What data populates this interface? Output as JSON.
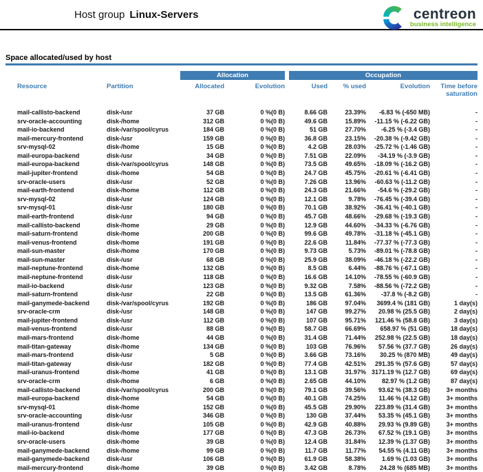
{
  "header": {
    "title_prefix": "Host group",
    "title_name": "Linux-Servers",
    "logo": {
      "brand": "centreon",
      "tagline": "business intelligence"
    }
  },
  "section": {
    "title": "Space allocated/used by host"
  },
  "colors": {
    "band_blue": "#3f7cb3",
    "header_text_blue": "#3f7cb3",
    "rule_blue": "#3f7cb3",
    "logo_navy": "#25323c",
    "logo_green": "#7ab829"
  },
  "table": {
    "group_headers": {
      "allocation": "Allocation",
      "occupation": "Occupation"
    },
    "columns": [
      "Resource",
      "Partition",
      "Allocated",
      "Evolution",
      "Used",
      "% used",
      "Evolution",
      "Time before saturation"
    ],
    "rows": [
      {
        "resource": "mail-callisto-backend",
        "partition": "disk-/usr",
        "allocated": "37 GB",
        "allocated_evolution": "0 %(0 B)",
        "used": "8.66 GB",
        "used_pct": "23.39%",
        "used_evolution": "-6.83 % (-650 MB)",
        "time_before_saturation": "-"
      },
      {
        "resource": "srv-oracle-accounting",
        "partition": "disk-/home",
        "allocated": "312 GB",
        "allocated_evolution": "0 %(0 B)",
        "used": "49.6 GB",
        "used_pct": "15.89%",
        "used_evolution": "-11.15 % (-6.22 GB)",
        "time_before_saturation": "-"
      },
      {
        "resource": "mail-io-backend",
        "partition": "disk-/var/spool/cyrus",
        "allocated": "184 GB",
        "allocated_evolution": "0 %(0 B)",
        "used": "51 GB",
        "used_pct": "27.70%",
        "used_evolution": "-6.25 % (-3.4 GB)",
        "time_before_saturation": "-"
      },
      {
        "resource": "mail-mercury-frontend",
        "partition": "disk-/usr",
        "allocated": "159 GB",
        "allocated_evolution": "0 %(0 B)",
        "used": "36.8 GB",
        "used_pct": "23.15%",
        "used_evolution": "-20.38 % (-9.42 GB)",
        "time_before_saturation": "-"
      },
      {
        "resource": "srv-mysql-02",
        "partition": "disk-/home",
        "allocated": "15 GB",
        "allocated_evolution": "0 %(0 B)",
        "used": "4.2 GB",
        "used_pct": "28.03%",
        "used_evolution": "-25.72 % (-1.46 GB)",
        "time_before_saturation": "-"
      },
      {
        "resource": "mail-europa-backend",
        "partition": "disk-/usr",
        "allocated": "34 GB",
        "allocated_evolution": "0 %(0 B)",
        "used": "7.51 GB",
        "used_pct": "22.09%",
        "used_evolution": "-34.19 % (-3.9 GB)",
        "time_before_saturation": "-"
      },
      {
        "resource": "mail-europa-backend",
        "partition": "disk-/var/spool/cyrus",
        "allocated": "148 GB",
        "allocated_evolution": "0 %(0 B)",
        "used": "73.5 GB",
        "used_pct": "49.65%",
        "used_evolution": "-18.09 % (-16.2 GB)",
        "time_before_saturation": "-"
      },
      {
        "resource": "mail-jupiter-frontend",
        "partition": "disk-/home",
        "allocated": "54 GB",
        "allocated_evolution": "0 %(0 B)",
        "used": "24.7 GB",
        "used_pct": "45.75%",
        "used_evolution": "-20.61 % (-6.41 GB)",
        "time_before_saturation": "-"
      },
      {
        "resource": "srv-oracle-users",
        "partition": "disk-/usr",
        "allocated": "52 GB",
        "allocated_evolution": "0 %(0 B)",
        "used": "7.26 GB",
        "used_pct": "13.96%",
        "used_evolution": "-60.63 % (-11.2 GB)",
        "time_before_saturation": "-"
      },
      {
        "resource": "mail-earth-frontend",
        "partition": "disk-/home",
        "allocated": "112 GB",
        "allocated_evolution": "0 %(0 B)",
        "used": "24.3 GB",
        "used_pct": "21.66%",
        "used_evolution": "-54.6 % (-29.2 GB)",
        "time_before_saturation": "-"
      },
      {
        "resource": "srv-mysql-02",
        "partition": "disk-/usr",
        "allocated": "124 GB",
        "allocated_evolution": "0 %(0 B)",
        "used": "12.1 GB",
        "used_pct": "9.78%",
        "used_evolution": "-76.45 % (-39.4 GB)",
        "time_before_saturation": "-"
      },
      {
        "resource": "srv-mysql-01",
        "partition": "disk-/usr",
        "allocated": "180 GB",
        "allocated_evolution": "0 %(0 B)",
        "used": "70.1 GB",
        "used_pct": "38.92%",
        "used_evolution": "-36.41 % (-40.1 GB)",
        "time_before_saturation": "-"
      },
      {
        "resource": "mail-earth-frontend",
        "partition": "disk-/usr",
        "allocated": "94 GB",
        "allocated_evolution": "0 %(0 B)",
        "used": "45.7 GB",
        "used_pct": "48.66%",
        "used_evolution": "-29.68 % (-19.3 GB)",
        "time_before_saturation": "-"
      },
      {
        "resource": "mail-callisto-backend",
        "partition": "disk-/home",
        "allocated": "29 GB",
        "allocated_evolution": "0 %(0 B)",
        "used": "12.9 GB",
        "used_pct": "44.60%",
        "used_evolution": "-34.33 % (-6.76 GB)",
        "time_before_saturation": "-"
      },
      {
        "resource": "mail-saturn-frontend",
        "partition": "disk-/home",
        "allocated": "200 GB",
        "allocated_evolution": "0 %(0 B)",
        "used": "99.6 GB",
        "used_pct": "49.78%",
        "used_evolution": "-31.18 % (-45.1 GB)",
        "time_before_saturation": "-"
      },
      {
        "resource": "mail-venus-frontend",
        "partition": "disk-/home",
        "allocated": "191 GB",
        "allocated_evolution": "0 %(0 B)",
        "used": "22.6 GB",
        "used_pct": "11.84%",
        "used_evolution": "-77.37 % (-77.3 GB)",
        "time_before_saturation": "-"
      },
      {
        "resource": "mail-sun-master",
        "partition": "disk-/home",
        "allocated": "170 GB",
        "allocated_evolution": "0 %(0 B)",
        "used": "9.73 GB",
        "used_pct": "5.73%",
        "used_evolution": "-89.01 % (-78.8 GB)",
        "time_before_saturation": "-"
      },
      {
        "resource": "mail-sun-master",
        "partition": "disk-/usr",
        "allocated": "68 GB",
        "allocated_evolution": "0 %(0 B)",
        "used": "25.9 GB",
        "used_pct": "38.09%",
        "used_evolution": "-46.18 % (-22.2 GB)",
        "time_before_saturation": "-"
      },
      {
        "resource": "mail-neptune-frontend",
        "partition": "disk-/home",
        "allocated": "132 GB",
        "allocated_evolution": "0 %(0 B)",
        "used": "8.5 GB",
        "used_pct": "6.44%",
        "used_evolution": "-88.76 % (-67.1 GB)",
        "time_before_saturation": "-"
      },
      {
        "resource": "mail-neptune-frontend",
        "partition": "disk-/usr",
        "allocated": "118 GB",
        "allocated_evolution": "0 %(0 B)",
        "used": "16.6 GB",
        "used_pct": "14.10%",
        "used_evolution": "-78.55 % (-60.9 GB)",
        "time_before_saturation": "-"
      },
      {
        "resource": "mail-io-backend",
        "partition": "disk-/usr",
        "allocated": "123 GB",
        "allocated_evolution": "0 %(0 B)",
        "used": "9.32 GB",
        "used_pct": "7.58%",
        "used_evolution": "-88.56 % (-72.2 GB)",
        "time_before_saturation": "-"
      },
      {
        "resource": "mail-saturn-frontend",
        "partition": "disk-/usr",
        "allocated": "22 GB",
        "allocated_evolution": "0 %(0 B)",
        "used": "13.5 GB",
        "used_pct": "61.36%",
        "used_evolution": "-37.8 % (-8.2 GB)",
        "time_before_saturation": "-"
      },
      {
        "resource": "mail-ganymede-backend",
        "partition": "disk-/var/spool/cyrus",
        "allocated": "192 GB",
        "allocated_evolution": "0 %(0 B)",
        "used": "186 GB",
        "used_pct": "97.04%",
        "used_evolution": "3699.4 % (181 GB)",
        "time_before_saturation": "1 day(s)"
      },
      {
        "resource": "srv-oracle-crm",
        "partition": "disk-/usr",
        "allocated": "148 GB",
        "allocated_evolution": "0 %(0 B)",
        "used": "147 GB",
        "used_pct": "99.27%",
        "used_evolution": "20.98 % (25.5 GB)",
        "time_before_saturation": "2 day(s)"
      },
      {
        "resource": "mail-jupiter-frontend",
        "partition": "disk-/usr",
        "allocated": "112 GB",
        "allocated_evolution": "0 %(0 B)",
        "used": "107 GB",
        "used_pct": "95.71%",
        "used_evolution": "121.46 % (58.8 GB)",
        "time_before_saturation": "3 day(s)"
      },
      {
        "resource": "mail-venus-frontend",
        "partition": "disk-/usr",
        "allocated": "88 GB",
        "allocated_evolution": "0 %(0 B)",
        "used": "58.7 GB",
        "used_pct": "66.69%",
        "used_evolution": "658.97 % (51 GB)",
        "time_before_saturation": "18 day(s)"
      },
      {
        "resource": "mail-mars-frontend",
        "partition": "disk-/home",
        "allocated": "44 GB",
        "allocated_evolution": "0 %(0 B)",
        "used": "31.4 GB",
        "used_pct": "71.44%",
        "used_evolution": "252.98 % (22.5 GB)",
        "time_before_saturation": "18 day(s)"
      },
      {
        "resource": "mail-titan-gateway",
        "partition": "disk-/home",
        "allocated": "134 GB",
        "allocated_evolution": "0 %(0 B)",
        "used": "103 GB",
        "used_pct": "76.96%",
        "used_evolution": "57.56 % (37.7 GB)",
        "time_before_saturation": "26 day(s)"
      },
      {
        "resource": "mail-mars-frontend",
        "partition": "disk-/usr",
        "allocated": "5 GB",
        "allocated_evolution": "0 %(0 B)",
        "used": "3.66 GB",
        "used_pct": "73.16%",
        "used_evolution": "30.25 % (870 MB)",
        "time_before_saturation": "49 day(s)"
      },
      {
        "resource": "mail-titan-gateway",
        "partition": "disk-/usr",
        "allocated": "182 GB",
        "allocated_evolution": "0 %(0 B)",
        "used": "77.4 GB",
        "used_pct": "42.51%",
        "used_evolution": "291.35 % (57.6 GB)",
        "time_before_saturation": "57 day(s)"
      },
      {
        "resource": "mail-uranus-frontend",
        "partition": "disk-/home",
        "allocated": "41 GB",
        "allocated_evolution": "0 %(0 B)",
        "used": "13.1 GB",
        "used_pct": "31.97%",
        "used_evolution": "3171.19 % (12.7 GB)",
        "time_before_saturation": "69 day(s)"
      },
      {
        "resource": "srv-oracle-crm",
        "partition": "disk-/home",
        "allocated": "6 GB",
        "allocated_evolution": "0 %(0 B)",
        "used": "2.65 GB",
        "used_pct": "44.10%",
        "used_evolution": "82.97 % (1.2 GB)",
        "time_before_saturation": "87 day(s)"
      },
      {
        "resource": "mail-callisto-backend",
        "partition": "disk-/var/spool/cyrus",
        "allocated": "200 GB",
        "allocated_evolution": "0 %(0 B)",
        "used": "79.1 GB",
        "used_pct": "39.56%",
        "used_evolution": "93.62 % (38.3 GB)",
        "time_before_saturation": "3+ months"
      },
      {
        "resource": "mail-europa-backend",
        "partition": "disk-/home",
        "allocated": "54 GB",
        "allocated_evolution": "0 %(0 B)",
        "used": "40.1 GB",
        "used_pct": "74.25%",
        "used_evolution": "11.46 % (4.12 GB)",
        "time_before_saturation": "3+ months"
      },
      {
        "resource": "srv-mysql-01",
        "partition": "disk-/home",
        "allocated": "152 GB",
        "allocated_evolution": "0 %(0 B)",
        "used": "45.5 GB",
        "used_pct": "29.90%",
        "used_evolution": "223.89 % (31.4 GB)",
        "time_before_saturation": "3+ months"
      },
      {
        "resource": "srv-oracle-accounting",
        "partition": "disk-/usr",
        "allocated": "346 GB",
        "allocated_evolution": "0 %(0 B)",
        "used": "130 GB",
        "used_pct": "37.44%",
        "used_evolution": "53.35 % (45.1 GB)",
        "time_before_saturation": "3+ months"
      },
      {
        "resource": "mail-uranus-frontend",
        "partition": "disk-/usr",
        "allocated": "105 GB",
        "allocated_evolution": "0 %(0 B)",
        "used": "42.9 GB",
        "used_pct": "40.88%",
        "used_evolution": "29.93 % (9.89 GB)",
        "time_before_saturation": "3+ months"
      },
      {
        "resource": "mail-io-backend",
        "partition": "disk-/home",
        "allocated": "177 GB",
        "allocated_evolution": "0 %(0 B)",
        "used": "47.3 GB",
        "used_pct": "26.73%",
        "used_evolution": "67.52 % (19.1 GB)",
        "time_before_saturation": "3+ months"
      },
      {
        "resource": "srv-oracle-users",
        "partition": "disk-/home",
        "allocated": "39 GB",
        "allocated_evolution": "0 %(0 B)",
        "used": "12.4 GB",
        "used_pct": "31.84%",
        "used_evolution": "12.39 % (1.37 GB)",
        "time_before_saturation": "3+ months"
      },
      {
        "resource": "mail-ganymede-backend",
        "partition": "disk-/home",
        "allocated": "99 GB",
        "allocated_evolution": "0 %(0 B)",
        "used": "11.7 GB",
        "used_pct": "11.77%",
        "used_evolution": "54.55 % (4.11 GB)",
        "time_before_saturation": "3+ months"
      },
      {
        "resource": "mail-ganymede-backend",
        "partition": "disk-/usr",
        "allocated": "106 GB",
        "allocated_evolution": "0 %(0 B)",
        "used": "61.9 GB",
        "used_pct": "58.38%",
        "used_evolution": "1.69 % (1.03 GB)",
        "time_before_saturation": "3+ months"
      },
      {
        "resource": "mail-mercury-frontend",
        "partition": "disk-/home",
        "allocated": "39 GB",
        "allocated_evolution": "0 %(0 B)",
        "used": "3.42 GB",
        "used_pct": "8.78%",
        "used_evolution": "24.28 % (685 MB)",
        "time_before_saturation": "3+ months"
      }
    ]
  }
}
